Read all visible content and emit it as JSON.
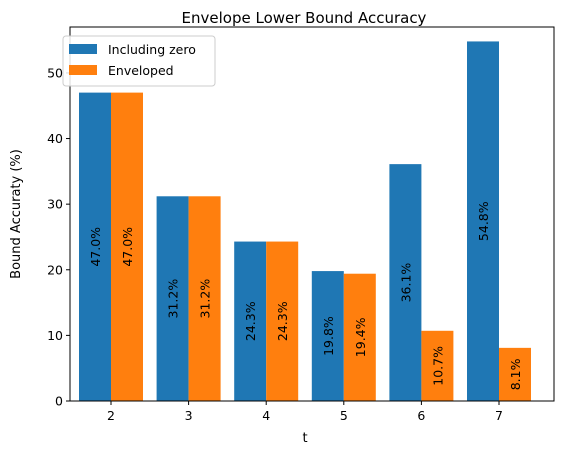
{
  "chart_data": {
    "type": "bar",
    "title": "Envelope Lower Bound Accuracy",
    "xlabel": "t",
    "ylabel": "Bound Accuraty (%)",
    "categories": [
      "2",
      "3",
      "4",
      "5",
      "6",
      "7"
    ],
    "ylim": [
      0,
      57
    ],
    "yticks": [
      0,
      10,
      20,
      30,
      40,
      50
    ],
    "grid": false,
    "legend_position": "top-left",
    "series": [
      {
        "name": "Including zero",
        "color": "#1f77b4",
        "values": [
          47.0,
          31.2,
          24.3,
          19.8,
          36.1,
          54.8
        ],
        "labels": [
          "47.0%",
          "31.2%",
          "24.3%",
          "19.8%",
          "36.1%",
          "54.8%"
        ]
      },
      {
        "name": "Enveloped",
        "color": "#ff7f0e",
        "values": [
          47.0,
          31.2,
          24.3,
          19.4,
          10.7,
          8.1
        ],
        "labels": [
          "47.0%",
          "31.2%",
          "24.3%",
          "19.4%",
          "10.7%",
          "8.1%"
        ]
      }
    ]
  }
}
